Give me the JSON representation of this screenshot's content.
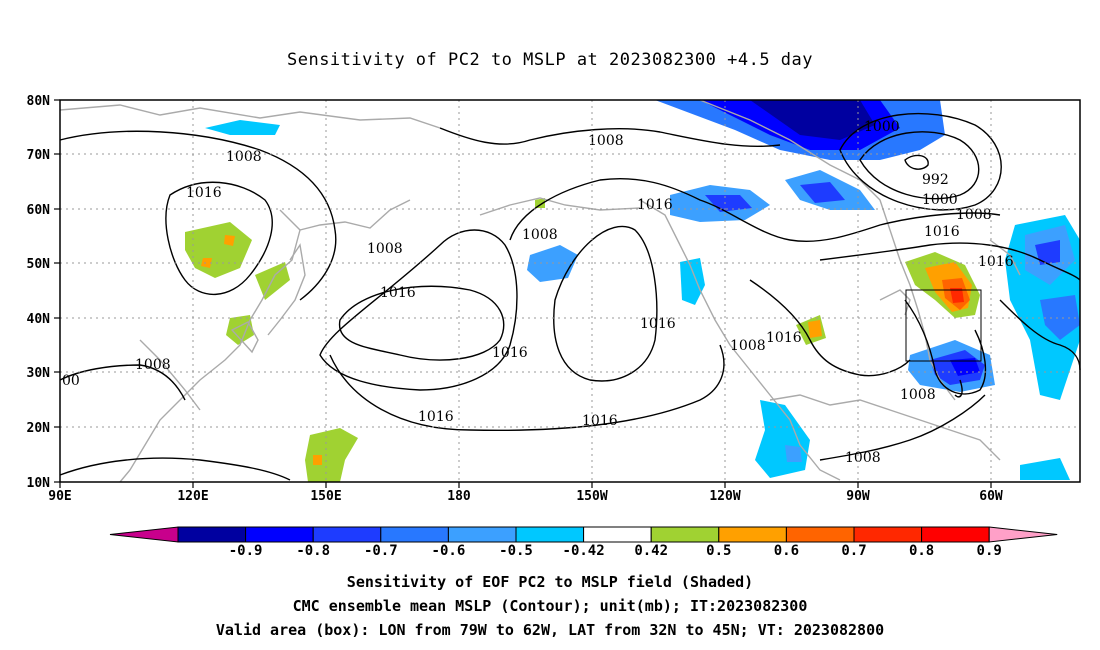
{
  "title": "Sensitivity of PC2 to MSLP at 2023082300 +4.5 day",
  "axes": {
    "lon_labels": [
      "90E",
      "120E",
      "150E",
      "180",
      "150W",
      "120W",
      "90W",
      "60W"
    ],
    "lat_labels": [
      "80N",
      "70N",
      "60N",
      "50N",
      "40N",
      "30N",
      "20N",
      "10N"
    ]
  },
  "contour_labels": [
    "1008",
    "1016",
    "1016",
    "1008",
    "1016",
    "1016",
    "1016",
    "1008",
    "1016",
    "1008",
    "1016",
    "1016",
    "1008",
    "1008",
    "1000",
    "992",
    "1000",
    "1008",
    "1016",
    "1016",
    "1008",
    "00",
    "1008"
  ],
  "colorbar": {
    "labels": [
      "-0.9",
      "-0.8",
      "-0.7",
      "-0.6",
      "-0.5",
      "-0.42",
      "0.42",
      "0.5",
      "0.6",
      "0.7",
      "0.8",
      "0.9"
    ],
    "colors": [
      "#c8008c",
      "#0000a0",
      "#0000ff",
      "#1e3cff",
      "#2878ff",
      "#3ca0ff",
      "#00c8ff",
      "#ffffff",
      "#a0d232",
      "#ffa000",
      "#ff6400",
      "#ff2800",
      "#ff0000",
      "#ffa0c8"
    ]
  },
  "captions": [
    "Sensitivity of EOF PC2 to MSLP field (Shaded)",
    "CMC ensemble mean MSLP (Contour); unit(mb); IT:2023082300",
    "Valid area (box): LON from 79W to 62W, LAT from 32N to 45N; VT: 2023082800"
  ]
}
